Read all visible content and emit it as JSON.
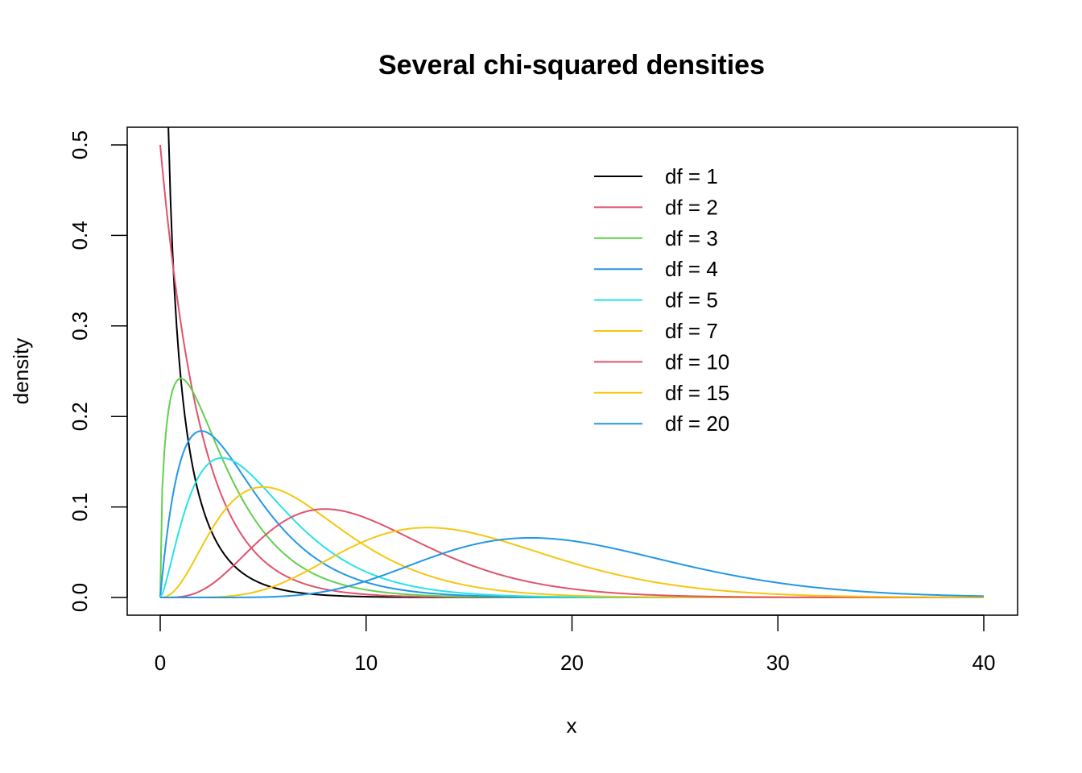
{
  "chart_data": {
    "type": "line",
    "title": "Several chi-squared densities",
    "xlabel": "x",
    "ylabel": "density",
    "xlim": [
      0,
      40
    ],
    "ylim": [
      0,
      0.5
    ],
    "x_ticks": [
      "0",
      "10",
      "20",
      "30",
      "40"
    ],
    "y_ticks": [
      "0.0",
      "0.1",
      "0.2",
      "0.3",
      "0.4",
      "0.5"
    ],
    "grid": false,
    "legend_position": "top-right",
    "series": [
      {
        "name": "df = 1",
        "df": 1,
        "color": "#000000"
      },
      {
        "name": "df = 2",
        "df": 2,
        "color": "#DF536B"
      },
      {
        "name": "df = 3",
        "df": 3,
        "color": "#61D04F"
      },
      {
        "name": "df = 4",
        "df": 4,
        "color": "#2297E6"
      },
      {
        "name": "df = 5",
        "df": 5,
        "color": "#28E2E5"
      },
      {
        "name": "df = 7",
        "df": 7,
        "color": "#F5C710"
      },
      {
        "name": "df = 10",
        "df": 10,
        "color": "#DF536B"
      },
      {
        "name": "df = 15",
        "df": 15,
        "color": "#F5C710"
      },
      {
        "name": "df = 20",
        "df": 20,
        "color": "#2297E6"
      }
    ]
  }
}
